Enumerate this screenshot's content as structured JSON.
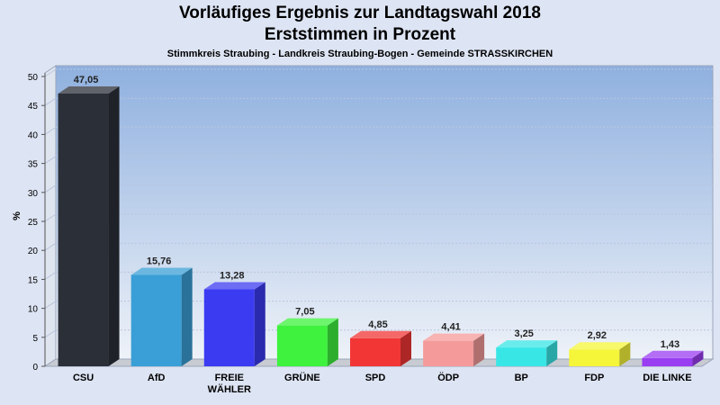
{
  "chart_data": {
    "type": "bar",
    "title": "Vorläufiges Ergebnis zur Landtagswahl 2018",
    "title_line2": "Erststimmen in Prozent",
    "subtitle": "Stimmkreis Straubing - Landkreis Straubing-Bogen - Gemeinde STRASSKIRCHEN",
    "xlabel": "",
    "ylabel": "%",
    "ylim": [
      0,
      50
    ],
    "yticks": [
      0,
      5,
      10,
      15,
      20,
      25,
      30,
      35,
      40,
      45,
      50
    ],
    "grid": true,
    "categories": [
      "CSU",
      "AfD",
      "FREIE WÄHLER",
      "GRÜNE",
      "SPD",
      "ÖDP",
      "BP",
      "FDP",
      "DIE LINKE"
    ],
    "category_lines": [
      [
        "CSU"
      ],
      [
        "AfD"
      ],
      [
        "FREIE",
        "WÄHLER"
      ],
      [
        "GRÜNE"
      ],
      [
        "SPD"
      ],
      [
        "ÖDP"
      ],
      [
        "BP"
      ],
      [
        "FDP"
      ],
      [
        "DIE LINKE"
      ]
    ],
    "values": [
      47.05,
      15.76,
      13.28,
      7.05,
      4.85,
      4.41,
      3.25,
      2.92,
      1.43
    ],
    "value_labels": [
      "47,05",
      "15,76",
      "13,28",
      "7,05",
      "4,85",
      "4,41",
      "3,25",
      "2,92",
      "1,43"
    ],
    "colors": [
      "#2b2f38",
      "#3a9fd6",
      "#3b3bf2",
      "#3ef23e",
      "#f23636",
      "#f59a9a",
      "#39e6e6",
      "#f5f53a",
      "#9a3ef2"
    ]
  }
}
